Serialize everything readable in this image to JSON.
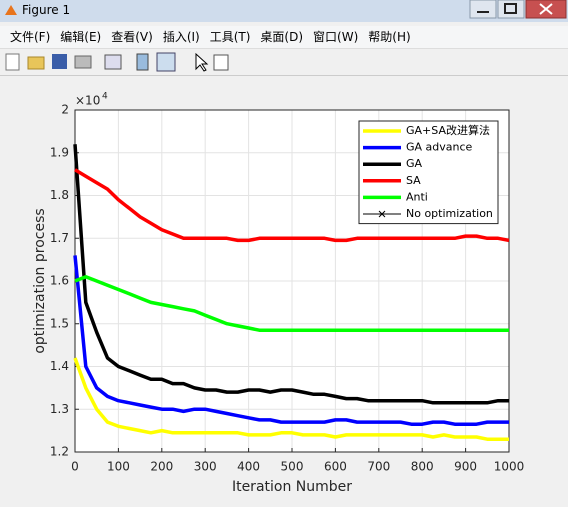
{
  "window": {
    "title": "Figure 1",
    "menus": [
      "文件(F)",
      "编辑(E)",
      "查看(V)",
      "插入(I)",
      "工具(T)",
      "桌面(D)",
      "窗口(W)",
      "帮助(H)"
    ]
  },
  "chart_data": {
    "type": "line",
    "x_label": "Iteration Number",
    "y_label": "optimization process",
    "y_multiplier": "×10",
    "y_multiplier_power": "4",
    "x": [
      0,
      25,
      50,
      75,
      100,
      125,
      150,
      175,
      200,
      225,
      250,
      275,
      300,
      325,
      350,
      375,
      400,
      425,
      450,
      475,
      500,
      525,
      550,
      575,
      600,
      625,
      650,
      675,
      700,
      725,
      750,
      775,
      800,
      825,
      850,
      875,
      900,
      925,
      950,
      975,
      1000
    ],
    "series": [
      {
        "name": "GA+SA改进算法",
        "color": "#ffff00",
        "values": [
          1.42,
          1.35,
          1.3,
          1.27,
          1.26,
          1.255,
          1.25,
          1.245,
          1.25,
          1.245,
          1.245,
          1.245,
          1.245,
          1.245,
          1.245,
          1.245,
          1.24,
          1.24,
          1.24,
          1.245,
          1.245,
          1.24,
          1.24,
          1.24,
          1.235,
          1.24,
          1.24,
          1.24,
          1.24,
          1.24,
          1.24,
          1.24,
          1.24,
          1.235,
          1.24,
          1.235,
          1.235,
          1.235,
          1.23,
          1.23,
          1.23
        ]
      },
      {
        "name": "GA advance",
        "color": "#0000ff",
        "values": [
          1.66,
          1.4,
          1.35,
          1.33,
          1.32,
          1.315,
          1.31,
          1.305,
          1.3,
          1.3,
          1.295,
          1.3,
          1.3,
          1.295,
          1.29,
          1.285,
          1.28,
          1.275,
          1.275,
          1.27,
          1.27,
          1.27,
          1.27,
          1.27,
          1.275,
          1.275,
          1.27,
          1.27,
          1.27,
          1.27,
          1.27,
          1.265,
          1.265,
          1.27,
          1.27,
          1.265,
          1.265,
          1.265,
          1.27,
          1.27,
          1.27
        ]
      },
      {
        "name": "GA",
        "color": "#000000",
        "values": [
          1.92,
          1.55,
          1.48,
          1.42,
          1.4,
          1.39,
          1.38,
          1.37,
          1.37,
          1.36,
          1.36,
          1.35,
          1.345,
          1.345,
          1.34,
          1.34,
          1.345,
          1.345,
          1.34,
          1.345,
          1.345,
          1.34,
          1.335,
          1.335,
          1.33,
          1.325,
          1.325,
          1.32,
          1.32,
          1.32,
          1.32,
          1.32,
          1.32,
          1.315,
          1.315,
          1.315,
          1.315,
          1.315,
          1.315,
          1.32,
          1.32
        ]
      },
      {
        "name": "SA",
        "color": "#ff0000",
        "values": [
          1.86,
          1.845,
          1.83,
          1.815,
          1.79,
          1.77,
          1.75,
          1.735,
          1.72,
          1.71,
          1.7,
          1.7,
          1.7,
          1.7,
          1.7,
          1.695,
          1.695,
          1.7,
          1.7,
          1.7,
          1.7,
          1.7,
          1.7,
          1.7,
          1.695,
          1.695,
          1.7,
          1.7,
          1.7,
          1.7,
          1.7,
          1.7,
          1.7,
          1.7,
          1.7,
          1.7,
          1.705,
          1.705,
          1.7,
          1.7,
          1.695
        ]
      },
      {
        "name": "Anti",
        "color": "#00ff00",
        "values": [
          1.6,
          1.61,
          1.6,
          1.59,
          1.58,
          1.57,
          1.56,
          1.55,
          1.545,
          1.54,
          1.535,
          1.53,
          1.52,
          1.51,
          1.5,
          1.495,
          1.49,
          1.485,
          1.485,
          1.485,
          1.485,
          1.485,
          1.485,
          1.485,
          1.485,
          1.485,
          1.485,
          1.485,
          1.485,
          1.485,
          1.485,
          1.485,
          1.485,
          1.485,
          1.485,
          1.485,
          1.485,
          1.485,
          1.485,
          1.485,
          1.485
        ]
      },
      {
        "name": "No optimization",
        "color": "#000000",
        "marker": "x",
        "values": [
          null,
          null,
          null,
          null,
          null,
          null,
          null,
          null,
          null,
          null,
          null,
          null,
          null,
          null,
          null,
          null,
          null,
          null,
          null,
          null,
          null,
          null,
          null,
          null,
          null,
          null,
          null,
          null,
          null,
          null,
          null,
          null,
          null,
          null,
          null,
          null,
          null,
          null,
          null,
          null,
          null
        ]
      }
    ],
    "xlim": [
      0,
      1000
    ],
    "xticks": [
      0,
      100,
      200,
      300,
      400,
      500,
      600,
      700,
      800,
      900,
      1000
    ],
    "ylim": [
      1.2,
      2
    ],
    "yticks": [
      1.2,
      1.3,
      1.4,
      1.5,
      1.6,
      1.7,
      1.8,
      1.9,
      2
    ],
    "grid": true,
    "legend": "top-right"
  }
}
